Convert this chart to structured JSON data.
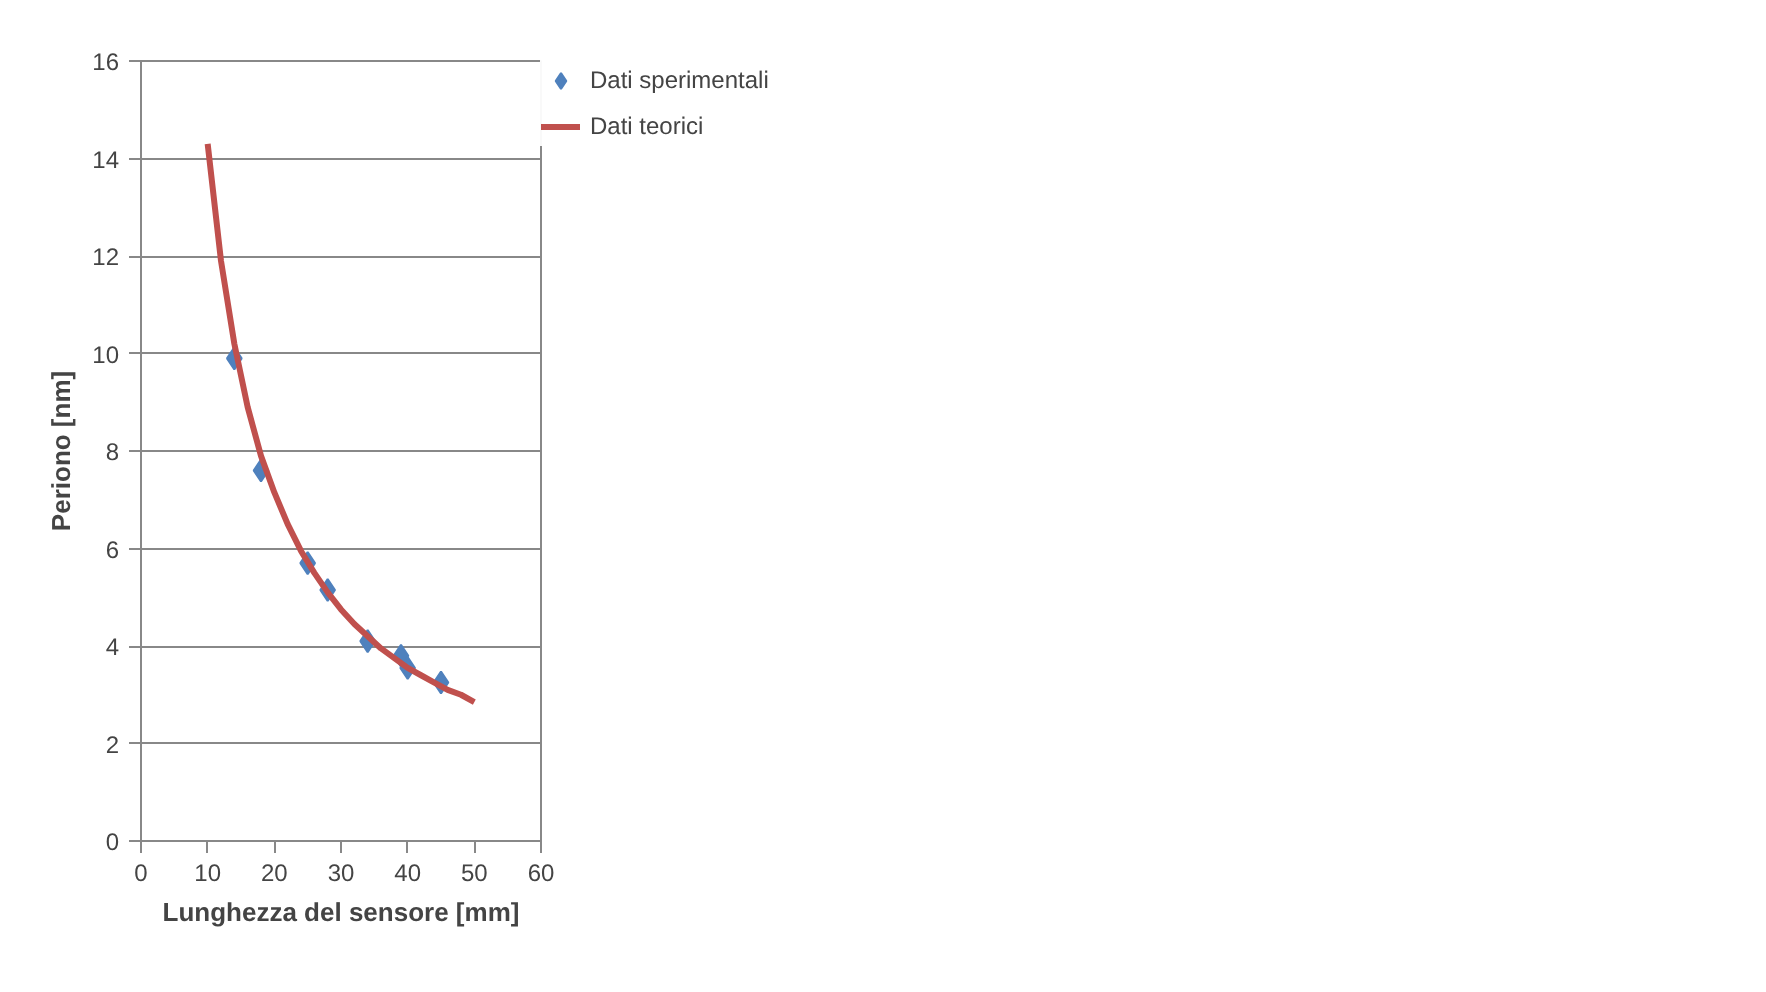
{
  "chart_data": {
    "type": "scatter",
    "xlabel": "Lunghezza del sensore [mm]",
    "ylabel": "Periono [nm]",
    "xlim": [
      0,
      60
    ],
    "xticks": [
      0,
      10,
      20,
      30,
      40,
      50,
      60
    ],
    "ylim": [
      0,
      16
    ],
    "yticks": [
      0,
      2,
      4,
      6,
      8,
      10,
      12,
      14,
      16
    ],
    "grid": "y",
    "legend": "right",
    "series": [
      {
        "name": "Dati sperimentali",
        "marker": "diamond",
        "color": "#4f81bd",
        "x": [
          14,
          18,
          25,
          28,
          34,
          39,
          40,
          45
        ],
        "values": [
          9.9,
          7.6,
          5.7,
          5.15,
          4.1,
          3.8,
          3.55,
          3.25
        ]
      },
      {
        "name": "Dati teorici",
        "type": "line",
        "marker": "none",
        "line_style": "solid",
        "color": "#c0504d",
        "x": [
          10,
          12,
          14,
          16,
          18,
          20,
          22,
          24,
          26,
          28,
          30,
          32,
          34,
          36,
          38,
          40,
          42,
          44,
          46,
          48,
          50
        ],
        "values": [
          14.3,
          11.9,
          10.2,
          8.9,
          7.9,
          7.15,
          6.5,
          5.95,
          5.5,
          5.1,
          4.75,
          4.45,
          4.2,
          3.95,
          3.75,
          3.55,
          3.4,
          3.25,
          3.1,
          3.0,
          2.85
        ]
      }
    ]
  }
}
